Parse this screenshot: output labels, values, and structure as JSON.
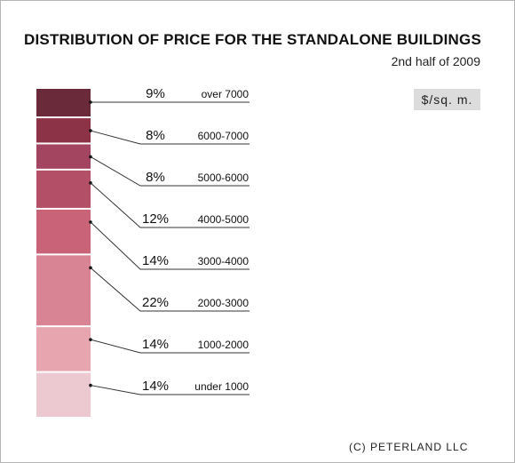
{
  "title": "DISTRIBUTION OF PRICE FOR THE STANDALONE BUILDINGS",
  "subtitle": "2nd half of 2009",
  "unit": "$/sq. m.",
  "copyright": "(C) PETERLAND LLC",
  "chart_data": {
    "type": "bar",
    "layout": "stacked-single-column",
    "title": "DISTRIBUTION OF PRICE FOR THE STANDALONE BUILDINGS",
    "subtitle": "2nd half of 2009",
    "unit": "$/sq. m.",
    "categories": [
      "over 7000",
      "6000-7000",
      "5000-6000",
      "4000-5000",
      "3000-4000",
      "2000-3000",
      "1000-2000",
      "under 1000"
    ],
    "values": [
      9,
      8,
      8,
      12,
      14,
      22,
      14,
      14
    ],
    "value_labels": [
      "9%",
      "8%",
      "8%",
      "12%",
      "14%",
      "22%",
      "14%",
      "14%"
    ],
    "colors": [
      "#6b2a3a",
      "#8c3348",
      "#a34460",
      "#b35067",
      "#c96378",
      "#d88494",
      "#e7a5b0",
      "#ecc8d0"
    ],
    "legend": "none",
    "grid": false
  }
}
